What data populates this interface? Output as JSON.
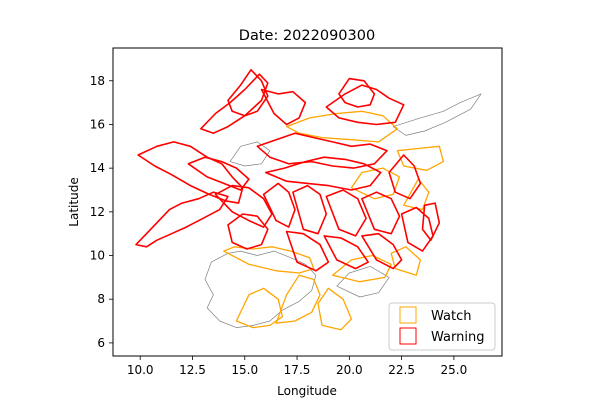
{
  "chart_data": {
    "type": "map",
    "title": "Date: 2022090300",
    "xlabel": "Longitude",
    "ylabel": "Latitude",
    "xlim": [
      8.7,
      27.3
    ],
    "ylim": [
      5.4,
      19.5
    ],
    "xticks": [
      10.0,
      12.5,
      15.0,
      17.5,
      20.0,
      22.5,
      25.0
    ],
    "xtick_labels": [
      "10.0",
      "12.5",
      "15.0",
      "17.5",
      "20.0",
      "22.5",
      "25.0"
    ],
    "yticks": [
      6,
      8,
      10,
      12,
      14,
      16,
      18
    ],
    "ytick_labels": [
      "6",
      "8",
      "10",
      "12",
      "14",
      "16",
      "18"
    ],
    "legend": {
      "position": "lower-right",
      "entries": [
        {
          "label": "Watch",
          "color": "#FFA500"
        },
        {
          "label": "Warning",
          "color": "#FF0000"
        }
      ]
    },
    "colors": {
      "background": "#808080",
      "watch": "#FFA500",
      "warning": "#FF0000"
    },
    "regions": [
      {
        "status": "background",
        "lon": [
          14.2,
          13.4,
          13.1,
          13.5,
          13.2,
          13.8,
          14.6,
          15.4,
          16.2,
          16.8,
          17.6,
          18.2,
          18.4,
          17.9,
          17.2,
          16.4,
          15.6,
          14.8,
          14.2
        ],
        "lat": [
          10.1,
          9.7,
          8.9,
          8.2,
          7.6,
          7.0,
          6.7,
          6.8,
          7.0,
          7.5,
          7.9,
          8.4,
          9.1,
          9.6,
          9.9,
          10.2,
          10.0,
          10.2,
          10.1
        ]
      },
      {
        "status": "background",
        "lon": [
          22.1,
          23.4,
          24.5,
          25.3,
          26.3,
          25.8,
          24.6,
          23.6,
          22.7,
          22.1
        ],
        "lat": [
          15.9,
          16.3,
          16.6,
          17.0,
          17.4,
          16.7,
          16.1,
          15.7,
          15.5,
          15.9
        ]
      },
      {
        "status": "background",
        "lon": [
          19.4,
          20.5,
          21.4,
          21.9,
          21.0,
          20.0,
          19.4
        ],
        "lat": [
          8.6,
          8.1,
          8.3,
          9.0,
          9.5,
          9.2,
          8.6
        ]
      },
      {
        "status": "background",
        "lon": [
          14.3,
          15.0,
          15.8,
          16.2,
          15.6,
          14.8,
          14.3
        ],
        "lat": [
          14.3,
          14.1,
          14.2,
          14.8,
          15.2,
          15.0,
          14.3
        ]
      },
      {
        "status": "watch",
        "lon": [
          14.0,
          15.2,
          16.5,
          17.6,
          18.3,
          18.1,
          17.2,
          16.3,
          15.4,
          14.5,
          14.0
        ],
        "lat": [
          10.2,
          9.6,
          9.3,
          9.2,
          9.4,
          9.9,
          10.2,
          10.4,
          10.3,
          10.4,
          10.2
        ]
      },
      {
        "status": "watch",
        "lon": [
          14.6,
          15.4,
          16.2,
          16.8,
          16.6,
          15.9,
          15.2,
          14.6
        ],
        "lat": [
          7.0,
          6.7,
          6.8,
          7.2,
          8.0,
          8.5,
          8.2,
          7.0
        ]
      },
      {
        "status": "watch",
        "lon": [
          16.5,
          17.4,
          18.2,
          18.6,
          18.3,
          17.6,
          17.0,
          16.5
        ],
        "lat": [
          6.9,
          7.0,
          7.4,
          8.2,
          8.9,
          9.1,
          8.2,
          6.9
        ]
      },
      {
        "status": "watch",
        "lon": [
          18.7,
          19.6,
          20.1,
          19.7,
          19.0,
          18.5,
          18.7
        ],
        "lat": [
          6.8,
          6.6,
          7.1,
          8.0,
          8.5,
          7.8,
          6.8
        ]
      },
      {
        "status": "watch",
        "lon": [
          19.2,
          20.5,
          21.7,
          22.0,
          21.1,
          20.1,
          19.2
        ],
        "lat": [
          9.1,
          8.8,
          9.0,
          9.6,
          10.0,
          9.8,
          9.1
        ]
      },
      {
        "status": "watch",
        "lon": [
          22.2,
          23.2,
          23.4,
          22.7,
          22.0,
          22.2
        ],
        "lat": [
          9.4,
          9.1,
          9.8,
          10.4,
          10.1,
          9.4
        ]
      },
      {
        "status": "watch",
        "lon": [
          17.0,
          18.1,
          19.4,
          20.6,
          21.6,
          22.3,
          21.4,
          20.1,
          18.7,
          17.6,
          17.0
        ],
        "lat": [
          15.9,
          16.3,
          16.5,
          16.6,
          16.4,
          15.8,
          15.2,
          15.3,
          15.4,
          15.6,
          15.9
        ]
      },
      {
        "status": "watch",
        "lon": [
          22.3,
          23.3,
          24.3,
          24.5,
          23.7,
          22.6,
          22.3
        ],
        "lat": [
          14.8,
          14.9,
          15.0,
          14.3,
          13.9,
          14.1,
          14.8
        ]
      },
      {
        "status": "watch",
        "lon": [
          20.1,
          21.2,
          22.1,
          22.4,
          21.6,
          20.6,
          20.1
        ],
        "lat": [
          13.1,
          12.6,
          12.8,
          13.6,
          14.0,
          13.8,
          13.1
        ]
      },
      {
        "status": "watch",
        "lon": [
          22.6,
          23.5,
          23.8,
          23.3,
          22.6
        ],
        "lat": [
          12.3,
          12.1,
          12.9,
          13.5,
          12.3
        ]
      },
      {
        "status": "warning",
        "lon": [
          9.8,
          10.3,
          10.9,
          11.4,
          12.0,
          12.8,
          13.5,
          14.2,
          13.8,
          13.0,
          12.2,
          11.5,
          10.8,
          10.3,
          9.8
        ],
        "lat": [
          10.5,
          11.0,
          11.6,
          12.1,
          12.4,
          12.6,
          12.9,
          12.7,
          12.1,
          11.7,
          11.3,
          11.0,
          10.7,
          10.4,
          10.5
        ]
      },
      {
        "status": "warning",
        "lon": [
          9.9,
          10.8,
          11.6,
          12.4,
          13.2,
          13.9,
          14.4,
          14.9,
          14.7,
          14.1,
          13.3,
          12.4,
          11.5,
          10.7,
          9.9
        ],
        "lat": [
          14.6,
          15.0,
          15.2,
          15.0,
          14.5,
          14.2,
          13.6,
          13.1,
          12.4,
          12.5,
          12.8,
          13.2,
          13.7,
          14.1,
          14.6
        ]
      },
      {
        "status": "warning",
        "lon": [
          12.9,
          13.6,
          14.3,
          15.0,
          15.7,
          16.1,
          15.8,
          15.0,
          14.2,
          13.5,
          12.9
        ],
        "lat": [
          15.8,
          16.5,
          17.0,
          17.6,
          18.3,
          17.9,
          17.1,
          16.4,
          15.9,
          15.6,
          15.8
        ]
      },
      {
        "status": "warning",
        "lon": [
          14.2,
          14.8,
          15.3,
          15.8,
          16.1,
          15.6,
          15.0,
          14.4,
          14.2
        ],
        "lat": [
          17.1,
          17.8,
          18.5,
          18.0,
          17.3,
          16.6,
          16.4,
          16.6,
          17.1
        ]
      },
      {
        "status": "warning",
        "lon": [
          15.8,
          16.6,
          17.3,
          17.9,
          17.6,
          17.0,
          16.4,
          15.8
        ],
        "lat": [
          17.6,
          17.4,
          17.5,
          17.0,
          16.3,
          16.0,
          16.5,
          17.6
        ]
      },
      {
        "status": "warning",
        "lon": [
          18.9,
          19.8,
          20.6,
          21.3,
          21.9,
          22.6,
          22.2,
          21.3,
          20.4,
          19.5,
          18.9
        ],
        "lat": [
          16.8,
          17.4,
          17.8,
          17.6,
          17.2,
          16.9,
          16.1,
          16.0,
          16.1,
          16.3,
          16.8
        ]
      },
      {
        "status": "warning",
        "lon": [
          19.5,
          20.0,
          20.7,
          21.2,
          21.0,
          20.4,
          19.8,
          19.5
        ],
        "lat": [
          17.4,
          18.1,
          18.0,
          17.4,
          16.9,
          16.8,
          17.0,
          17.4
        ]
      },
      {
        "status": "warning",
        "lon": [
          15.6,
          16.5,
          17.4,
          18.3,
          19.2,
          20.1,
          21.0,
          21.8,
          21.2,
          20.2,
          19.2,
          18.2,
          17.1,
          16.2,
          15.6
        ],
        "lat": [
          15.0,
          15.3,
          15.6,
          15.4,
          15.2,
          15.0,
          15.1,
          14.8,
          14.2,
          14.0,
          14.1,
          14.3,
          14.2,
          14.5,
          15.0
        ]
      },
      {
        "status": "warning",
        "lon": [
          16.0,
          16.9,
          17.9,
          18.8,
          19.8,
          20.7,
          21.5,
          21.0,
          20.1,
          19.0,
          18.0,
          17.0,
          16.0
        ],
        "lat": [
          13.8,
          14.0,
          14.3,
          14.5,
          14.4,
          14.2,
          13.8,
          13.2,
          13.0,
          13.2,
          13.3,
          13.4,
          13.8
        ]
      },
      {
        "status": "warning",
        "lon": [
          13.6,
          14.4,
          15.2,
          15.9,
          16.3,
          15.9,
          15.2,
          14.4,
          13.6
        ],
        "lat": [
          12.8,
          13.2,
          13.1,
          12.6,
          11.9,
          11.3,
          11.6,
          12.0,
          12.8
        ]
      },
      {
        "status": "warning",
        "lon": [
          14.2,
          14.9,
          15.6,
          16.1,
          15.8,
          15.1,
          14.4,
          14.2
        ],
        "lat": [
          11.4,
          11.9,
          11.8,
          11.2,
          10.5,
          10.3,
          10.6,
          11.4
        ]
      },
      {
        "status": "warning",
        "lon": [
          15.9,
          16.6,
          17.1,
          17.4,
          17.1,
          16.5,
          15.9
        ],
        "lat": [
          12.8,
          13.3,
          12.9,
          12.1,
          11.3,
          11.6,
          12.8
        ]
      },
      {
        "status": "warning",
        "lon": [
          17.3,
          18.0,
          18.6,
          18.9,
          18.5,
          17.8,
          17.3
        ],
        "lat": [
          12.9,
          13.2,
          12.8,
          11.9,
          11.0,
          11.2,
          12.9
        ]
      },
      {
        "status": "warning",
        "lon": [
          17.0,
          17.8,
          18.6,
          19.0,
          18.4,
          17.5,
          17.0
        ],
        "lat": [
          11.1,
          11.0,
          10.5,
          9.7,
          9.3,
          9.7,
          11.1
        ]
      },
      {
        "status": "warning",
        "lon": [
          18.9,
          19.7,
          20.4,
          20.8,
          20.3,
          19.5,
          18.9
        ],
        "lat": [
          12.7,
          13.0,
          12.6,
          11.7,
          10.9,
          11.2,
          12.7
        ]
      },
      {
        "status": "warning",
        "lon": [
          18.8,
          19.6,
          20.4,
          20.9,
          20.3,
          19.4,
          18.8
        ],
        "lat": [
          10.9,
          10.8,
          10.4,
          9.7,
          9.4,
          9.8,
          10.9
        ]
      },
      {
        "status": "warning",
        "lon": [
          20.6,
          21.3,
          22.0,
          22.4,
          22.0,
          21.2,
          20.6
        ],
        "lat": [
          12.6,
          12.9,
          12.6,
          11.8,
          11.0,
          11.2,
          12.6
        ]
      },
      {
        "status": "warning",
        "lon": [
          20.6,
          21.4,
          22.1,
          22.5,
          22.1,
          21.3,
          20.6
        ],
        "lat": [
          10.9,
          11.0,
          10.5,
          9.8,
          9.4,
          9.8,
          10.9
        ]
      },
      {
        "status": "warning",
        "lon": [
          21.9,
          22.6,
          23.1,
          23.4,
          22.9,
          22.2,
          21.9
        ],
        "lat": [
          13.8,
          14.6,
          14.1,
          13.3,
          12.6,
          12.9,
          13.8
        ]
      },
      {
        "status": "warning",
        "lon": [
          22.5,
          23.2,
          23.8,
          24.0,
          23.5,
          22.8,
          22.5
        ],
        "lat": [
          11.9,
          12.2,
          11.7,
          10.9,
          10.2,
          10.6,
          11.9
        ]
      },
      {
        "status": "warning",
        "lon": [
          23.6,
          24.1,
          24.3,
          23.9,
          23.5,
          23.6
        ],
        "lat": [
          12.3,
          12.4,
          11.5,
          10.7,
          11.2,
          12.3
        ]
      },
      {
        "status": "warning",
        "lon": [
          12.3,
          13.1,
          13.9,
          14.6,
          15.2,
          14.8,
          14.0,
          13.2,
          12.3
        ],
        "lat": [
          14.2,
          14.5,
          14.3,
          14.0,
          13.5,
          13.0,
          13.3,
          13.6,
          14.2
        ]
      }
    ]
  }
}
